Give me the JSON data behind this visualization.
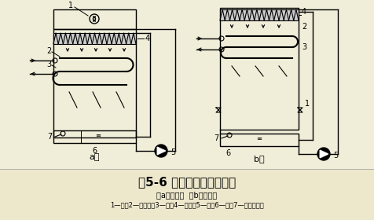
{
  "bg_color": "#f0edd8",
  "title_bg": "#e8e4c8",
  "title": "图5-6 蒸发式冷凝器示意图",
  "subtitle": "（a）吸入式  （b）压送式",
  "legend": "1—风机2—淋水装置3—盘管4—挡水板5—水泵6—水盘7—浮球阀补水",
  "title_fontsize": 11,
  "subtitle_fontsize": 7,
  "legend_fontsize": 6,
  "label_a": "a）",
  "label_b": "b）"
}
